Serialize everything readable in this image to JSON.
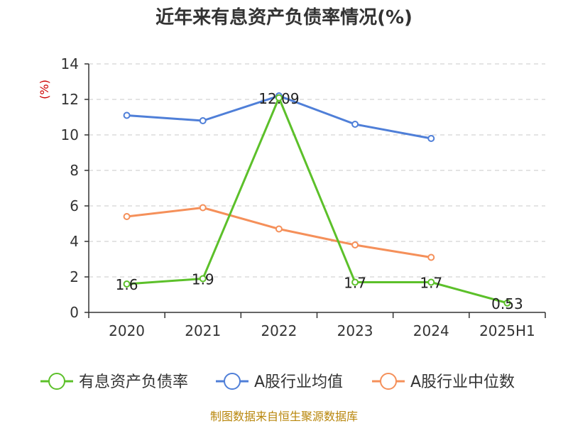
{
  "chart_data": {
    "type": "line",
    "title": "近年来有息资产负债率情况(%)",
    "unit_label": "(%)",
    "categories": [
      "2020",
      "2021",
      "2022",
      "2023",
      "2024",
      "2025H1"
    ],
    "ylim": [
      0,
      14
    ],
    "yticks": [
      0,
      2,
      4,
      6,
      8,
      10,
      12,
      14
    ],
    "grid": true,
    "legend_position": "bottom",
    "series": [
      {
        "name": "有息资产负债率",
        "color": "#5cc02a",
        "values": [
          1.6,
          1.9,
          12.09,
          1.7,
          1.7,
          0.53
        ],
        "data_labels": [
          "1.6",
          "1.9",
          "12.09",
          "1.7",
          "1.7",
          "0.53"
        ]
      },
      {
        "name": "A股行业均值",
        "color": "#4f7fd8",
        "values": [
          11.1,
          10.8,
          12.2,
          10.6,
          9.8,
          null
        ]
      },
      {
        "name": "A股行业中位数",
        "color": "#f5905a",
        "values": [
          5.4,
          5.9,
          4.7,
          3.8,
          3.1,
          null
        ]
      }
    ],
    "source": "制图数据来自恒生聚源数据库"
  }
}
